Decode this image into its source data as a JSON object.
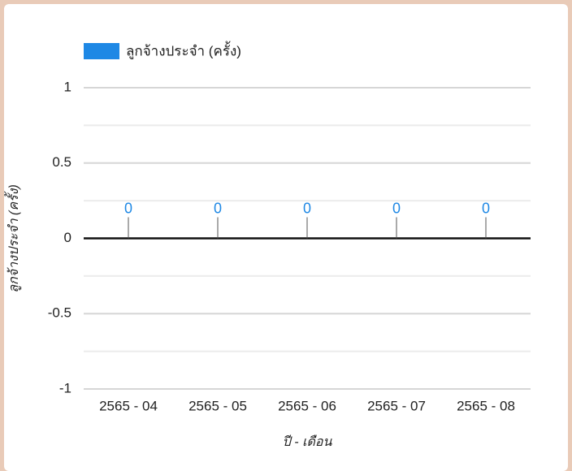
{
  "chart_data": {
    "type": "bar",
    "legend_name": "ลูกจ้างประจำ (ครั้ง)",
    "y_label": "ลูกจ้างประจำ (ครั้ง)",
    "x_label": "ปี - เดือน",
    "categories": [
      "2565 - 04",
      "2565 - 05",
      "2565 - 06",
      "2565 - 07",
      "2565 - 08"
    ],
    "values": [
      0,
      0,
      0,
      0,
      0
    ],
    "color": "#1e88e5",
    "ylim": [
      -1,
      1
    ],
    "yticks": [
      -1,
      -0.5,
      0,
      0.5,
      1
    ],
    "minor_yticks": [
      -0.75,
      -0.25,
      0.25,
      0.75
    ],
    "grid": true,
    "data_labels": true,
    "legend": "top"
  }
}
